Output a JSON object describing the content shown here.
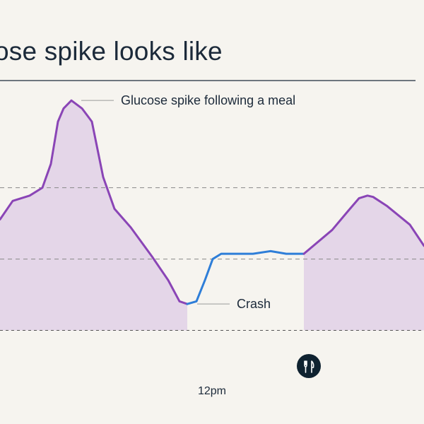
{
  "title": "ose spike looks like",
  "chart_data": {
    "type": "area",
    "x_tick_label": "12pm",
    "xlim": [
      0,
      600
    ],
    "ylim": [
      0,
      100
    ],
    "reference_lines": [
      60,
      33
    ],
    "baseline": 6,
    "colors": {
      "purple": "#8a45b6",
      "blue": "#2e7ed8",
      "fill": "#e4d6e8",
      "dashed": "#888888"
    },
    "series": [
      {
        "segment": "spike-1",
        "color": "purple",
        "filled": true,
        "x": [
          0,
          18,
          42,
          60,
          72,
          82,
          90,
          101,
          116,
          130,
          146,
          162,
          185,
          215,
          238,
          254,
          265
        ],
        "y": [
          48,
          55,
          57,
          60,
          69,
          85,
          90,
          93,
          90,
          85,
          64,
          52,
          45,
          34,
          25,
          17,
          16
        ]
      },
      {
        "segment": "crash-recovery",
        "color": "blue",
        "x": [
          265,
          278,
          290,
          301,
          313,
          325,
          340,
          358,
          383,
          405,
          430
        ],
        "y": [
          16,
          17,
          25,
          33,
          35,
          35,
          35,
          35,
          36,
          35,
          35
        ]
      },
      {
        "segment": "spike-2",
        "color": "purple",
        "filled": true,
        "x": [
          430,
          470,
          492,
          508,
          520,
          528,
          548,
          580,
          600
        ],
        "y": [
          35,
          44,
          51,
          56,
          57,
          56.5,
          53,
          46,
          38
        ]
      }
    ],
    "annotations": [
      {
        "text": "Glucose spike following a meal",
        "x": 101,
        "y": 93
      },
      {
        "text": "Crash",
        "x": 265,
        "y": 16
      }
    ],
    "meal_icon": {
      "icon": "fork-knife-icon",
      "x": 437
    }
  }
}
